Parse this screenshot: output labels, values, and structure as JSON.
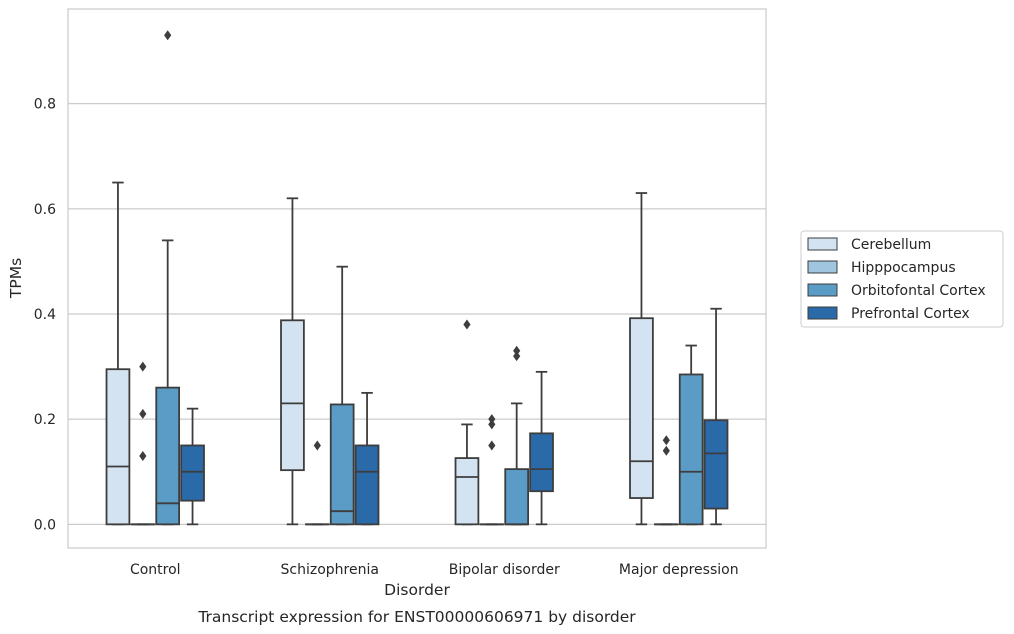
{
  "chart_data": {
    "type": "box",
    "caption": "Transcript expression for ENST00000606971 by disorder",
    "xlabel": "Disorder",
    "ylabel": "TPMs",
    "ylim": [
      -0.045,
      0.98
    ],
    "yticks": [
      "0.0",
      "0.2",
      "0.4",
      "0.6",
      "0.8"
    ],
    "categories": [
      "Control",
      "Schizophrenia",
      "Bipolar disorder",
      "Major depression"
    ],
    "grid": "horizontal",
    "legend_position": "right",
    "series": [
      {
        "name": "Cerebellum",
        "color": "#d4e3f1",
        "boxes": [
          {
            "q1": 0.0,
            "median": 0.11,
            "q3": 0.295,
            "whisker_low": 0.0,
            "whisker_high": 0.65,
            "outliers": []
          },
          {
            "q1": 0.103,
            "median": 0.23,
            "q3": 0.388,
            "whisker_low": 0.0,
            "whisker_high": 0.62,
            "outliers": []
          },
          {
            "q1": 0.0,
            "median": 0.09,
            "q3": 0.126,
            "whisker_low": 0.0,
            "whisker_high": 0.19,
            "outliers": [
              0.38
            ]
          },
          {
            "q1": 0.05,
            "median": 0.12,
            "q3": 0.392,
            "whisker_low": 0.0,
            "whisker_high": 0.63,
            "outliers": []
          }
        ]
      },
      {
        "name": "Hipppocampus",
        "color": "#9fc5df",
        "boxes": [
          {
            "q1": 0.0,
            "median": 0.0,
            "q3": 0.0,
            "whisker_low": 0.0,
            "whisker_high": 0.0,
            "outliers": [
              0.13,
              0.21,
              0.3
            ]
          },
          {
            "q1": 0.0,
            "median": 0.0,
            "q3": 0.0,
            "whisker_low": 0.0,
            "whisker_high": 0.0,
            "outliers": [
              0.15
            ]
          },
          {
            "q1": 0.0,
            "median": 0.0,
            "q3": 0.0,
            "whisker_low": 0.0,
            "whisker_high": 0.0,
            "outliers": [
              0.15,
              0.19,
              0.2
            ]
          },
          {
            "q1": 0.0,
            "median": 0.0,
            "q3": 0.0,
            "whisker_low": 0.0,
            "whisker_high": 0.0,
            "outliers": [
              0.14,
              0.16
            ]
          }
        ]
      },
      {
        "name": "Orbitofontal Cortex",
        "color": "#5b9cc6",
        "boxes": [
          {
            "q1": 0.0,
            "median": 0.04,
            "q3": 0.26,
            "whisker_low": 0.0,
            "whisker_high": 0.54,
            "outliers": [
              0.93
            ]
          },
          {
            "q1": 0.0,
            "median": 0.025,
            "q3": 0.228,
            "whisker_low": 0.0,
            "whisker_high": 0.49,
            "outliers": []
          },
          {
            "q1": 0.0,
            "median": 0.0,
            "q3": 0.105,
            "whisker_low": 0.0,
            "whisker_high": 0.23,
            "outliers": [
              0.32,
              0.33
            ]
          },
          {
            "q1": 0.0,
            "median": 0.1,
            "q3": 0.285,
            "whisker_low": 0.0,
            "whisker_high": 0.34,
            "outliers": []
          }
        ]
      },
      {
        "name": "Prefrontal Cortex",
        "color": "#2a6aa8",
        "boxes": [
          {
            "q1": 0.045,
            "median": 0.1,
            "q3": 0.15,
            "whisker_low": 0.0,
            "whisker_high": 0.22,
            "outliers": []
          },
          {
            "q1": 0.0,
            "median": 0.1,
            "q3": 0.15,
            "whisker_low": 0.0,
            "whisker_high": 0.25,
            "outliers": []
          },
          {
            "q1": 0.063,
            "median": 0.105,
            "q3": 0.173,
            "whisker_low": 0.0,
            "whisker_high": 0.29,
            "outliers": []
          },
          {
            "q1": 0.03,
            "median": 0.135,
            "q3": 0.198,
            "whisker_low": 0.0,
            "whisker_high": 0.41,
            "outliers": []
          }
        ]
      }
    ]
  }
}
